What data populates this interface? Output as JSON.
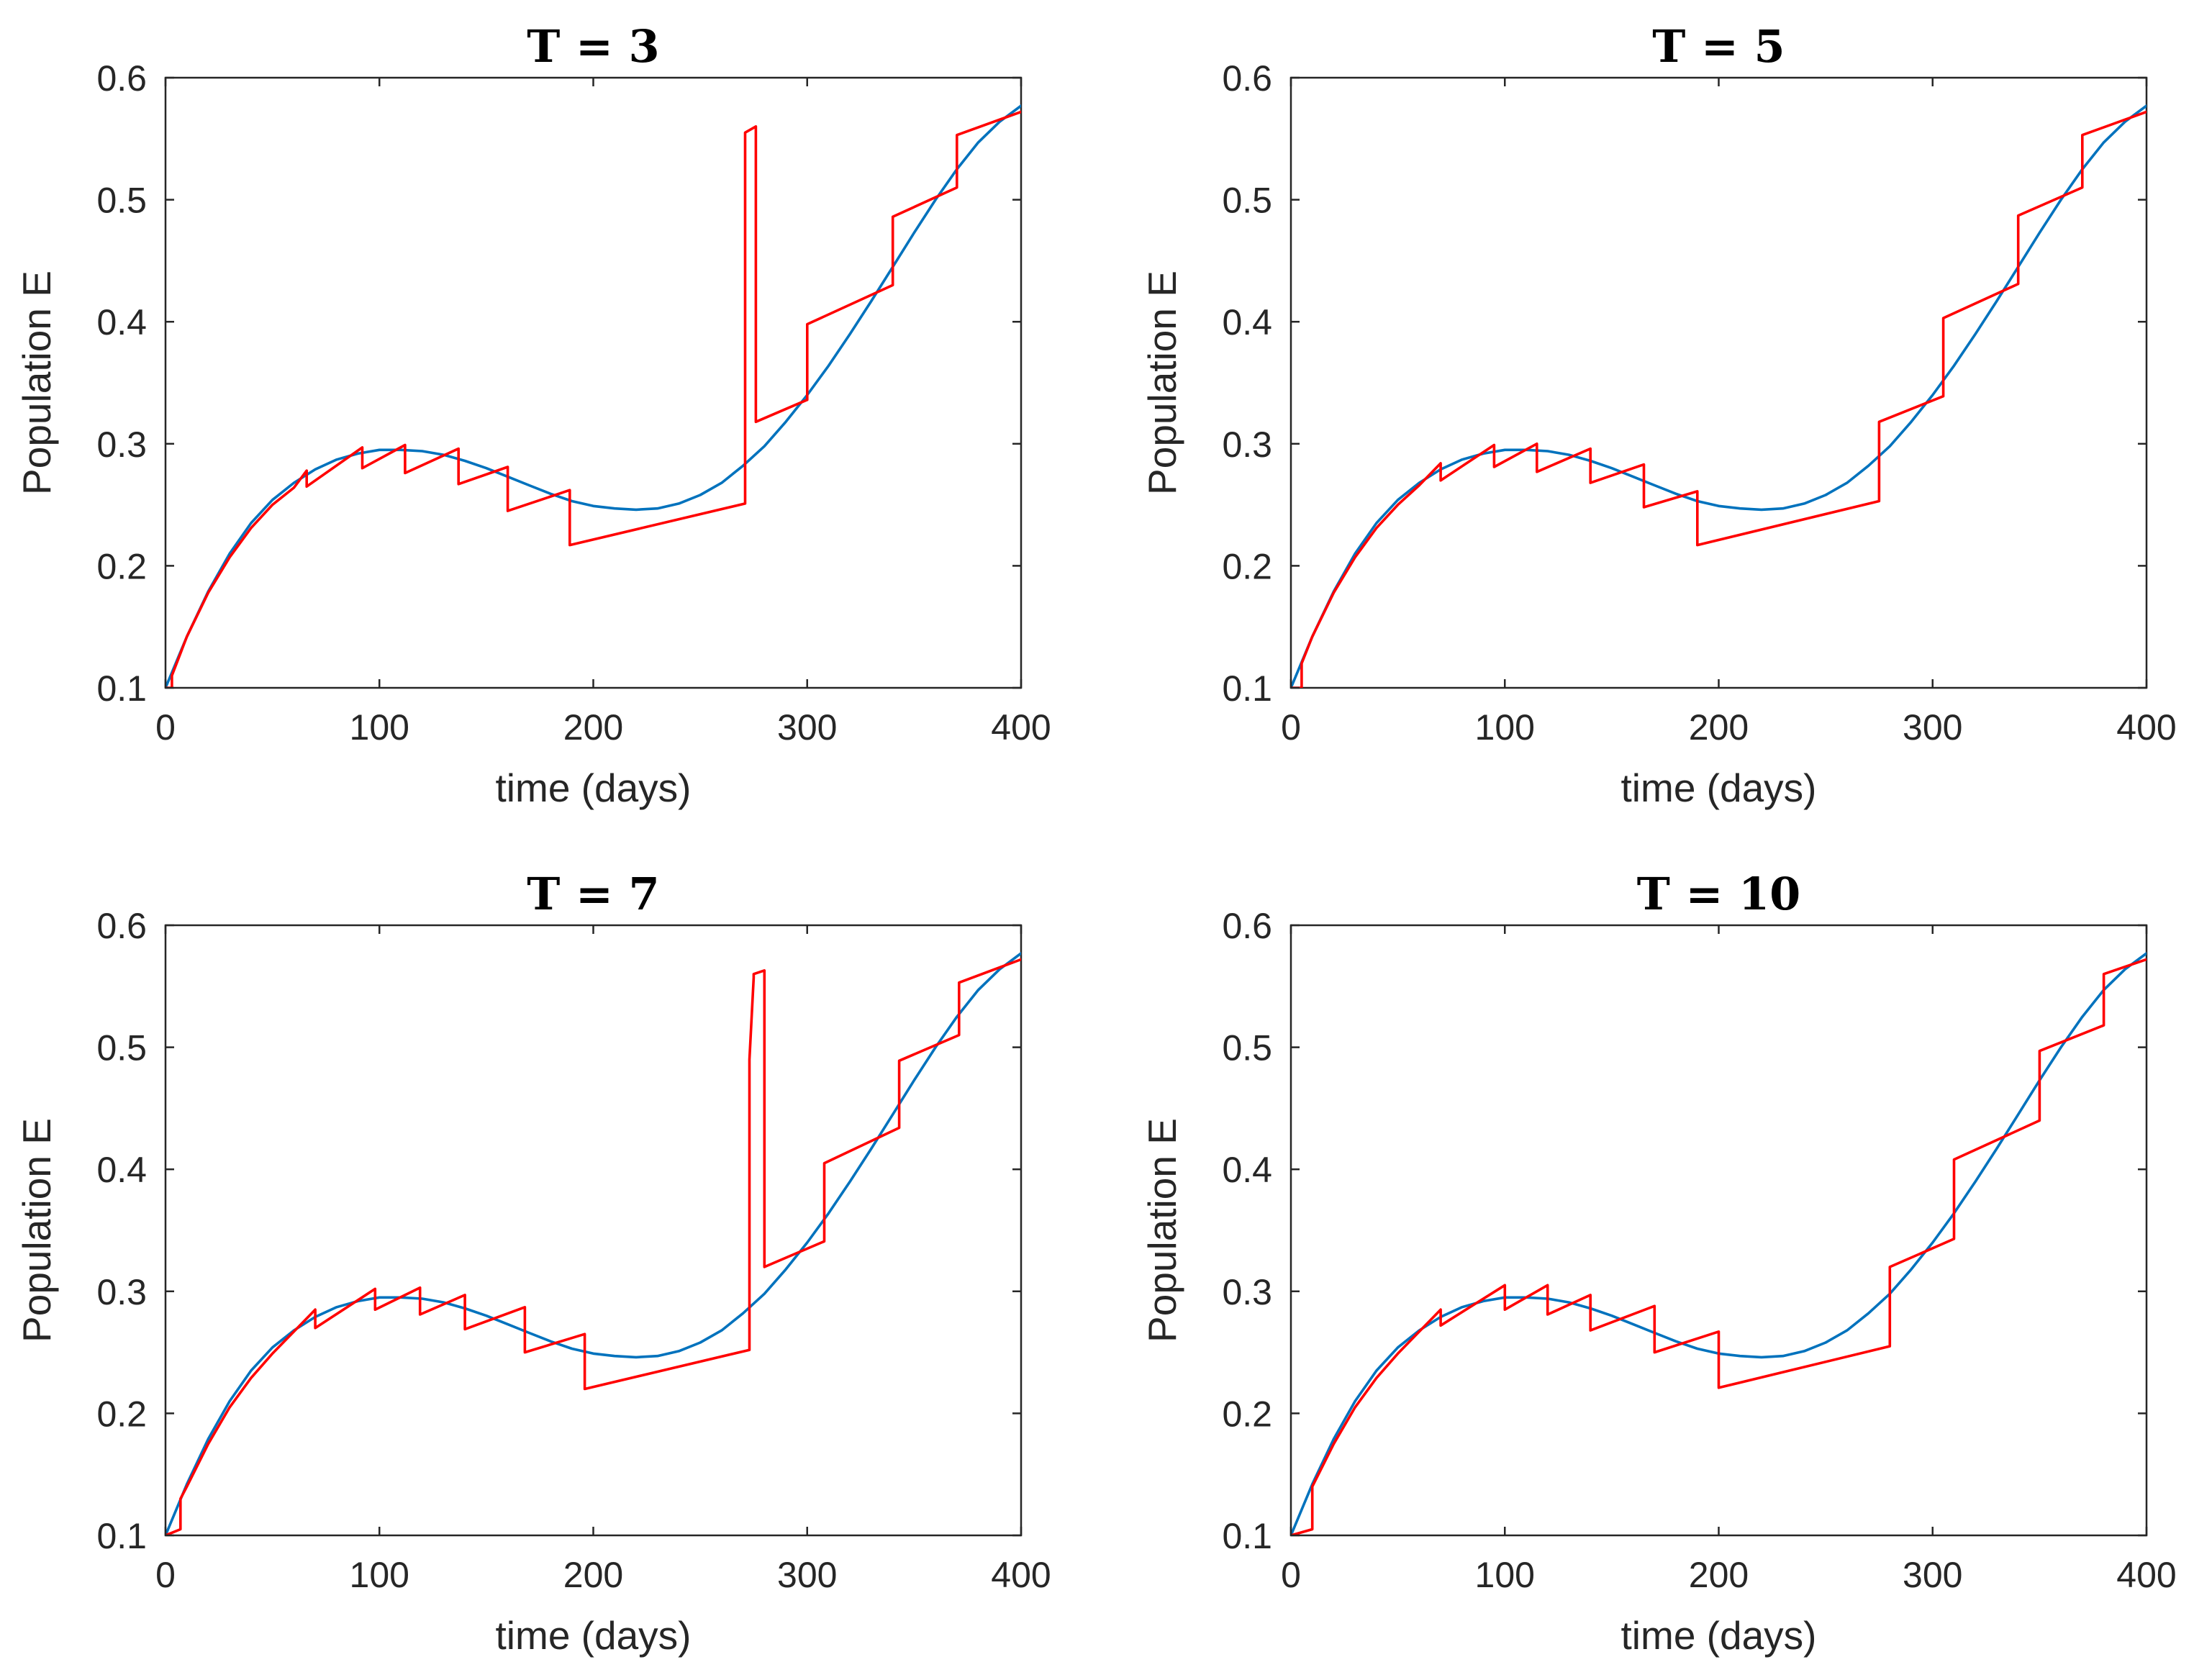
{
  "colors": {
    "series_blue": "#0072BD",
    "series_red": "#FF0000",
    "axis": "#262626"
  },
  "chart_data": [
    {
      "type": "line",
      "title": "T = 3",
      "xlabel": "time (days)",
      "ylabel": "Population E",
      "xlim": [
        0,
        400
      ],
      "ylim": [
        0.1,
        0.6
      ],
      "xticks": [
        0,
        100,
        200,
        300,
        400
      ],
      "yticks": [
        0.1,
        0.2,
        0.3,
        0.4,
        0.5,
        0.6
      ],
      "grid": false,
      "series": [
        {
          "color": "#0072BD",
          "x": [
            0,
            10,
            20,
            30,
            40,
            50,
            60,
            70,
            80,
            90,
            100,
            110,
            120,
            130,
            140,
            150,
            160,
            170,
            180,
            190,
            200,
            210,
            220,
            230,
            240,
            250,
            260,
            270,
            280,
            290,
            300,
            310,
            320,
            330,
            340,
            350,
            360,
            370,
            380,
            390,
            400
          ],
          "y": [
            0.1,
            0.142,
            0.179,
            0.21,
            0.235,
            0.254,
            0.268,
            0.279,
            0.287,
            0.292,
            0.295,
            0.295,
            0.294,
            0.291,
            0.286,
            0.28,
            0.273,
            0.266,
            0.259,
            0.253,
            0.249,
            0.247,
            0.246,
            0.247,
            0.251,
            0.258,
            0.268,
            0.282,
            0.298,
            0.318,
            0.34,
            0.364,
            0.39,
            0.417,
            0.445,
            0.473,
            0.5,
            0.525,
            0.547,
            0.564,
            0.577
          ]
        },
        {
          "color": "#FF0000",
          "x": [
            0,
            3,
            3,
            10,
            20,
            30,
            40,
            50,
            60,
            66,
            66,
            92,
            92,
            112,
            112,
            137,
            137,
            160,
            160,
            189,
            189,
            271,
            271,
            276,
            276,
            300,
            300,
            340,
            340,
            370,
            370,
            400
          ],
          "y": [
            0.1,
            0.1,
            0.11,
            0.142,
            0.178,
            0.207,
            0.231,
            0.25,
            0.264,
            0.278,
            0.265,
            0.297,
            0.28,
            0.299,
            0.276,
            0.296,
            0.267,
            0.281,
            0.245,
            0.262,
            0.217,
            0.251,
            0.555,
            0.56,
            0.318,
            0.336,
            0.398,
            0.43,
            0.486,
            0.51,
            0.553,
            0.572
          ]
        }
      ]
    },
    {
      "type": "line",
      "title": "T = 5",
      "xlabel": "time (days)",
      "ylabel": "Population E",
      "xlim": [
        0,
        400
      ],
      "ylim": [
        0.1,
        0.6
      ],
      "xticks": [
        0,
        100,
        200,
        300,
        400
      ],
      "yticks": [
        0.1,
        0.2,
        0.3,
        0.4,
        0.5,
        0.6
      ],
      "grid": false,
      "series": [
        {
          "color": "#0072BD",
          "x": [
            0,
            10,
            20,
            30,
            40,
            50,
            60,
            70,
            80,
            90,
            100,
            110,
            120,
            130,
            140,
            150,
            160,
            170,
            180,
            190,
            200,
            210,
            220,
            230,
            240,
            250,
            260,
            270,
            280,
            290,
            300,
            310,
            320,
            330,
            340,
            350,
            360,
            370,
            380,
            390,
            400
          ],
          "y": [
            0.1,
            0.142,
            0.179,
            0.21,
            0.235,
            0.254,
            0.268,
            0.279,
            0.287,
            0.292,
            0.295,
            0.295,
            0.294,
            0.291,
            0.286,
            0.28,
            0.273,
            0.266,
            0.259,
            0.253,
            0.249,
            0.247,
            0.246,
            0.247,
            0.251,
            0.258,
            0.268,
            0.282,
            0.298,
            0.318,
            0.34,
            0.364,
            0.39,
            0.417,
            0.445,
            0.473,
            0.5,
            0.525,
            0.547,
            0.564,
            0.577
          ]
        },
        {
          "color": "#FF0000",
          "x": [
            0,
            5,
            5,
            10,
            20,
            30,
            40,
            50,
            60,
            70,
            70,
            95,
            95,
            115,
            115,
            140,
            140,
            165,
            165,
            190,
            190,
            275,
            275,
            305,
            305,
            340,
            340,
            370,
            370,
            400
          ],
          "y": [
            0.1,
            0.1,
            0.12,
            0.142,
            0.178,
            0.207,
            0.231,
            0.25,
            0.266,
            0.284,
            0.27,
            0.299,
            0.281,
            0.3,
            0.277,
            0.296,
            0.268,
            0.283,
            0.248,
            0.261,
            0.217,
            0.253,
            0.318,
            0.339,
            0.403,
            0.431,
            0.487,
            0.51,
            0.553,
            0.572
          ]
        }
      ]
    },
    {
      "type": "line",
      "title": "T = 7",
      "xlabel": "time (days)",
      "ylabel": "Population E",
      "xlim": [
        0,
        400
      ],
      "ylim": [
        0.1,
        0.6
      ],
      "xticks": [
        0,
        100,
        200,
        300,
        400
      ],
      "yticks": [
        0.1,
        0.2,
        0.3,
        0.4,
        0.5,
        0.6
      ],
      "grid": false,
      "series": [
        {
          "color": "#0072BD",
          "x": [
            0,
            10,
            20,
            30,
            40,
            50,
            60,
            70,
            80,
            90,
            100,
            110,
            120,
            130,
            140,
            150,
            160,
            170,
            180,
            190,
            200,
            210,
            220,
            230,
            240,
            250,
            260,
            270,
            280,
            290,
            300,
            310,
            320,
            330,
            340,
            350,
            360,
            370,
            380,
            390,
            400
          ],
          "y": [
            0.1,
            0.142,
            0.179,
            0.21,
            0.235,
            0.254,
            0.268,
            0.279,
            0.287,
            0.292,
            0.295,
            0.295,
            0.294,
            0.291,
            0.286,
            0.28,
            0.273,
            0.266,
            0.259,
            0.253,
            0.249,
            0.247,
            0.246,
            0.247,
            0.251,
            0.258,
            0.268,
            0.282,
            0.298,
            0.318,
            0.34,
            0.364,
            0.39,
            0.417,
            0.445,
            0.473,
            0.5,
            0.525,
            0.547,
            0.564,
            0.577
          ]
        },
        {
          "color": "#FF0000",
          "x": [
            0,
            7,
            7,
            10,
            20,
            30,
            40,
            50,
            60,
            70,
            70,
            98,
            98,
            119,
            119,
            140,
            140,
            168,
            168,
            196,
            196,
            273,
            273,
            275,
            275,
            280,
            280,
            308,
            308,
            343,
            343,
            371,
            371,
            400
          ],
          "y": [
            0.1,
            0.105,
            0.13,
            0.14,
            0.175,
            0.205,
            0.229,
            0.249,
            0.267,
            0.285,
            0.27,
            0.302,
            0.285,
            0.303,
            0.281,
            0.297,
            0.269,
            0.287,
            0.25,
            0.265,
            0.22,
            0.252,
            0.49,
            0.557,
            0.56,
            0.563,
            0.32,
            0.341,
            0.405,
            0.434,
            0.489,
            0.51,
            0.553,
            0.572
          ]
        }
      ]
    },
    {
      "type": "line",
      "title": "T = 10",
      "xlabel": "time (days)",
      "ylabel": "Population E",
      "xlim": [
        0,
        400
      ],
      "ylim": [
        0.1,
        0.6
      ],
      "xticks": [
        0,
        100,
        200,
        300,
        400
      ],
      "yticks": [
        0.1,
        0.2,
        0.3,
        0.4,
        0.5,
        0.6
      ],
      "grid": false,
      "series": [
        {
          "color": "#0072BD",
          "x": [
            0,
            10,
            20,
            30,
            40,
            50,
            60,
            70,
            80,
            90,
            100,
            110,
            120,
            130,
            140,
            150,
            160,
            170,
            180,
            190,
            200,
            210,
            220,
            230,
            240,
            250,
            260,
            270,
            280,
            290,
            300,
            310,
            320,
            330,
            340,
            350,
            360,
            370,
            380,
            390,
            400
          ],
          "y": [
            0.1,
            0.142,
            0.179,
            0.21,
            0.235,
            0.254,
            0.268,
            0.279,
            0.287,
            0.292,
            0.295,
            0.295,
            0.294,
            0.291,
            0.286,
            0.28,
            0.273,
            0.266,
            0.259,
            0.253,
            0.249,
            0.247,
            0.246,
            0.247,
            0.251,
            0.258,
            0.268,
            0.282,
            0.298,
            0.318,
            0.34,
            0.364,
            0.39,
            0.417,
            0.445,
            0.473,
            0.5,
            0.525,
            0.547,
            0.564,
            0.577
          ]
        },
        {
          "color": "#FF0000",
          "x": [
            0,
            10,
            10,
            20,
            30,
            40,
            50,
            60,
            70,
            70,
            100,
            100,
            120,
            120,
            140,
            140,
            170,
            170,
            200,
            200,
            280,
            280,
            310,
            310,
            350,
            350,
            380,
            380,
            400
          ],
          "y": [
            0.1,
            0.105,
            0.14,
            0.175,
            0.205,
            0.229,
            0.249,
            0.267,
            0.285,
            0.272,
            0.305,
            0.285,
            0.305,
            0.281,
            0.297,
            0.268,
            0.288,
            0.25,
            0.267,
            0.221,
            0.255,
            0.32,
            0.343,
            0.408,
            0.44,
            0.497,
            0.518,
            0.56,
            0.572
          ]
        }
      ]
    }
  ]
}
